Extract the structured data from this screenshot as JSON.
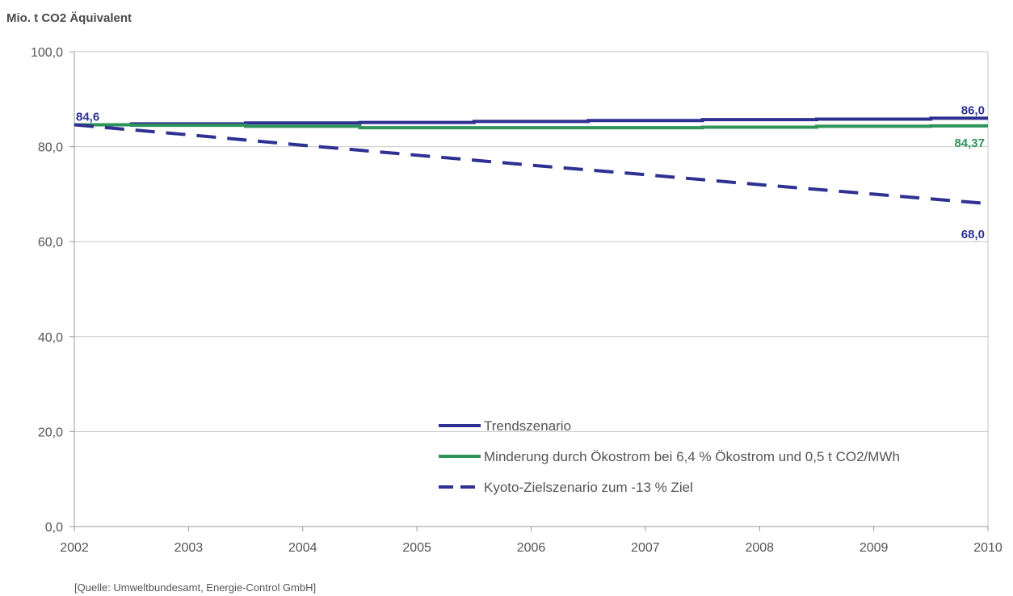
{
  "chart_data": {
    "type": "line",
    "ylabel": "Mio. t CO2 Äquivalent",
    "source": "[Quelle: Umweltbundesamt, Energie-Control GmbH]",
    "x": [
      "2002",
      "2003",
      "2004",
      "2005",
      "2006",
      "2007",
      "2008",
      "2009",
      "2010"
    ],
    "ylim": [
      0,
      100
    ],
    "yticks": [
      "0,0",
      "20,0",
      "40,0",
      "60,0",
      "80,0",
      "100,0"
    ],
    "grid": true,
    "legend_position": "bottom-center",
    "series": [
      {
        "name": "Trendszenario",
        "color": "#2e3192",
        "style": "solid",
        "values": [
          84.6,
          84.8,
          85.0,
          85.1,
          85.3,
          85.5,
          85.7,
          85.8,
          86.0
        ]
      },
      {
        "name": "Minderung durch Ökostrom bei 6,4 % Ökostrom und 0,5 t CO2/MWh",
        "color": "#2e9459",
        "style": "solid",
        "values": [
          84.6,
          84.5,
          84.3,
          84.0,
          84.0,
          84.0,
          84.1,
          84.3,
          84.37
        ]
      },
      {
        "name": "Kyoto-Zielszenario zum -13 % Ziel",
        "color": "#2e3192",
        "style": "dashed",
        "values": [
          84.6,
          82.5,
          80.3,
          78.2,
          76.1,
          74.1,
          72.0,
          70.0,
          68.0
        ]
      }
    ],
    "annotations": [
      {
        "text": "84,6",
        "series": 0,
        "point": 0,
        "color": "#2e3192"
      },
      {
        "text": "86,0",
        "series": 0,
        "point": 8,
        "color": "#2e3192"
      },
      {
        "text": "84,37",
        "series": 1,
        "point": 8,
        "color": "#2e9459"
      },
      {
        "text": "68,0",
        "series": 2,
        "point": 8,
        "color": "#2e3192"
      }
    ]
  }
}
